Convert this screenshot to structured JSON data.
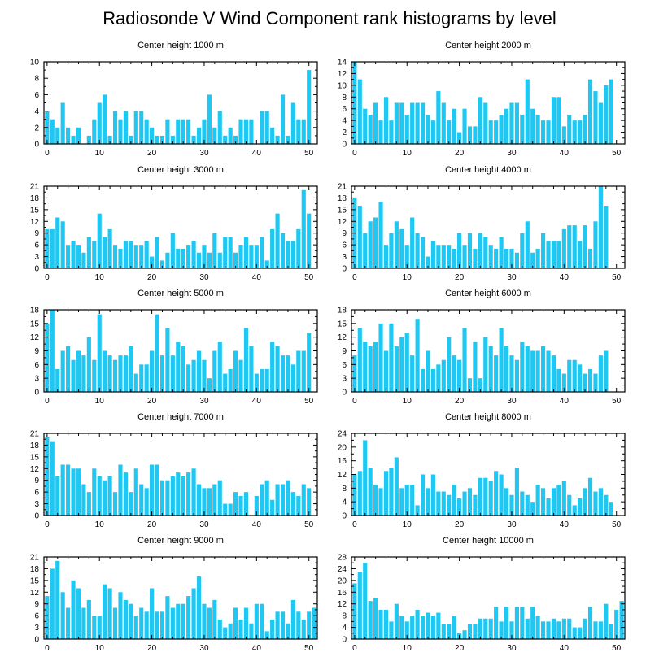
{
  "title": "Radiosonde V Wind Component rank histograms by level",
  "bar_color": "#1ec8f2",
  "chart_data": [
    {
      "type": "bar",
      "title": "Center height 1000 m",
      "x": [
        0,
        1,
        2,
        3,
        4,
        5,
        6,
        7,
        8,
        9,
        10,
        11,
        12,
        13,
        14,
        15,
        16,
        17,
        18,
        19,
        20,
        21,
        22,
        23,
        24,
        25,
        26,
        27,
        28,
        29,
        30,
        31,
        32,
        33,
        34,
        35,
        36,
        37,
        38,
        39,
        40,
        41,
        42,
        43,
        44,
        45,
        46,
        47,
        48,
        49,
        50,
        51
      ],
      "values": [
        4,
        3,
        2,
        5,
        2,
        1,
        2,
        0,
        1,
        3,
        5,
        6,
        1,
        4,
        3,
        4,
        1,
        4,
        4,
        3,
        2,
        1,
        1,
        3,
        1,
        3,
        3,
        3,
        1,
        2,
        3,
        6,
        2,
        4,
        1,
        2,
        1,
        3,
        3,
        3,
        0,
        4,
        4,
        2,
        1,
        6,
        1,
        5,
        3,
        3,
        9,
        0
      ],
      "ylim": [
        0,
        10
      ],
      "yticks": [
        0,
        2,
        4,
        6,
        8,
        10
      ],
      "xticks": [
        0,
        10,
        20,
        30,
        40,
        50
      ]
    },
    {
      "type": "bar",
      "title": "Center height 2000 m",
      "x": [
        0,
        1,
        2,
        3,
        4,
        5,
        6,
        7,
        8,
        9,
        10,
        11,
        12,
        13,
        14,
        15,
        16,
        17,
        18,
        19,
        20,
        21,
        22,
        23,
        24,
        25,
        26,
        27,
        28,
        29,
        30,
        31,
        32,
        33,
        34,
        35,
        36,
        37,
        38,
        39,
        40,
        41,
        42,
        43,
        44,
        45,
        46,
        47,
        48,
        49,
        50,
        51
      ],
      "values": [
        14,
        11,
        6,
        5,
        7,
        4,
        8,
        4,
        7,
        7,
        5,
        7,
        7,
        7,
        5,
        4,
        9,
        7,
        4,
        6,
        2,
        6,
        3,
        3,
        8,
        7,
        4,
        4,
        5,
        6,
        7,
        7,
        5,
        11,
        6,
        5,
        4,
        4,
        8,
        8,
        3,
        5,
        4,
        4,
        5,
        11,
        9,
        7,
        10,
        11,
        0,
        0
      ],
      "ylim": [
        0,
        14
      ],
      "yticks": [
        0,
        2,
        4,
        6,
        8,
        10,
        12,
        14
      ],
      "xticks": [
        0,
        10,
        20,
        30,
        40,
        50
      ]
    },
    {
      "type": "bar",
      "title": "Center height 3000 m",
      "x": [
        0,
        1,
        2,
        3,
        4,
        5,
        6,
        7,
        8,
        9,
        10,
        11,
        12,
        13,
        14,
        15,
        16,
        17,
        18,
        19,
        20,
        21,
        22,
        23,
        24,
        25,
        26,
        27,
        28,
        29,
        30,
        31,
        32,
        33,
        34,
        35,
        36,
        37,
        38,
        39,
        40,
        41,
        42,
        43,
        44,
        45,
        46,
        47,
        48,
        49,
        50,
        51
      ],
      "values": [
        10,
        10,
        13,
        12,
        6,
        7,
        6,
        4,
        8,
        7,
        14,
        8,
        10,
        6,
        5,
        7,
        7,
        6,
        6,
        7,
        3,
        8,
        2,
        4,
        9,
        5,
        5,
        6,
        7,
        4,
        6,
        4,
        9,
        4,
        8,
        8,
        4,
        6,
        8,
        6,
        6,
        8,
        2,
        10,
        14,
        9,
        7,
        7,
        10,
        20,
        14,
        0
      ],
      "ylim": [
        0,
        21
      ],
      "yticks": [
        0,
        3,
        6,
        9,
        12,
        15,
        18,
        21
      ],
      "xticks": [
        0,
        10,
        20,
        30,
        40,
        50
      ]
    },
    {
      "type": "bar",
      "title": "Center height 4000 m",
      "x": [
        0,
        1,
        2,
        3,
        4,
        5,
        6,
        7,
        8,
        9,
        10,
        11,
        12,
        13,
        14,
        15,
        16,
        17,
        18,
        19,
        20,
        21,
        22,
        23,
        24,
        25,
        26,
        27,
        28,
        29,
        30,
        31,
        32,
        33,
        34,
        35,
        36,
        37,
        38,
        39,
        40,
        41,
        42,
        43,
        44,
        45,
        46,
        47,
        48,
        49,
        50,
        51
      ],
      "values": [
        18,
        16,
        9,
        12,
        13,
        17,
        6,
        9,
        12,
        10,
        6,
        13,
        9,
        8,
        3,
        7,
        6,
        6,
        6,
        5,
        9,
        6,
        9,
        5,
        9,
        8,
        6,
        5,
        8,
        5,
        5,
        4,
        9,
        12,
        4,
        5,
        9,
        7,
        7,
        7,
        10,
        11,
        11,
        7,
        11,
        5,
        12,
        21,
        16,
        0,
        0,
        0
      ],
      "ylim": [
        0,
        21
      ],
      "yticks": [
        0,
        3,
        6,
        9,
        12,
        15,
        18,
        21
      ],
      "xticks": [
        0,
        10,
        20,
        30,
        40,
        50
      ]
    },
    {
      "type": "bar",
      "title": "Center height 5000 m",
      "x": [
        0,
        1,
        2,
        3,
        4,
        5,
        6,
        7,
        8,
        9,
        10,
        11,
        12,
        13,
        14,
        15,
        16,
        17,
        18,
        19,
        20,
        21,
        22,
        23,
        24,
        25,
        26,
        27,
        28,
        29,
        30,
        31,
        32,
        33,
        34,
        35,
        36,
        37,
        38,
        39,
        40,
        41,
        42,
        43,
        44,
        45,
        46,
        47,
        48,
        49,
        50,
        51
      ],
      "values": [
        15,
        18,
        5,
        9,
        10,
        7,
        9,
        8,
        12,
        7,
        17,
        9,
        8,
        7,
        8,
        8,
        10,
        4,
        6,
        6,
        9,
        17,
        8,
        14,
        8,
        11,
        10,
        6,
        7,
        9,
        7,
        3,
        9,
        11,
        4,
        5,
        9,
        7,
        14,
        10,
        4,
        5,
        5,
        11,
        10,
        8,
        8,
        6,
        9,
        9,
        13,
        0
      ],
      "ylim": [
        0,
        18
      ],
      "yticks": [
        0,
        3,
        6,
        9,
        12,
        15,
        18
      ],
      "xticks": [
        0,
        10,
        20,
        30,
        40,
        50
      ]
    },
    {
      "type": "bar",
      "title": "Center height 6000 m",
      "x": [
        0,
        1,
        2,
        3,
        4,
        5,
        6,
        7,
        8,
        9,
        10,
        11,
        12,
        13,
        14,
        15,
        16,
        17,
        18,
        19,
        20,
        21,
        22,
        23,
        24,
        25,
        26,
        27,
        28,
        29,
        30,
        31,
        32,
        33,
        34,
        35,
        36,
        37,
        38,
        39,
        40,
        41,
        42,
        43,
        44,
        45,
        46,
        47,
        48,
        49,
        50,
        51
      ],
      "values": [
        8,
        14,
        11,
        10,
        11,
        15,
        9,
        15,
        10,
        12,
        13,
        8,
        16,
        5,
        9,
        5,
        6,
        7,
        12,
        8,
        7,
        14,
        3,
        11,
        3,
        12,
        10,
        8,
        14,
        10,
        8,
        7,
        11,
        10,
        9,
        9,
        10,
        9,
        8,
        5,
        4,
        7,
        7,
        6,
        4,
        5,
        4,
        8,
        9,
        0,
        0,
        0
      ],
      "ylim": [
        0,
        18
      ],
      "yticks": [
        0,
        3,
        6,
        9,
        12,
        15,
        18
      ],
      "xticks": [
        0,
        10,
        20,
        30,
        40,
        50
      ]
    },
    {
      "type": "bar",
      "title": "Center height 7000 m",
      "x": [
        0,
        1,
        2,
        3,
        4,
        5,
        6,
        7,
        8,
        9,
        10,
        11,
        12,
        13,
        14,
        15,
        16,
        17,
        18,
        19,
        20,
        21,
        22,
        23,
        24,
        25,
        26,
        27,
        28,
        29,
        30,
        31,
        32,
        33,
        34,
        35,
        36,
        37,
        38,
        39,
        40,
        41,
        42,
        43,
        44,
        45,
        46,
        47,
        48,
        49,
        50,
        51
      ],
      "values": [
        20,
        19,
        10,
        13,
        13,
        12,
        12,
        8,
        6,
        12,
        10,
        9,
        10,
        6,
        13,
        11,
        6,
        12,
        8,
        7,
        13,
        13,
        9,
        9,
        10,
        11,
        10,
        11,
        12,
        8,
        7,
        7,
        8,
        9,
        3,
        3,
        6,
        5,
        6,
        0,
        5,
        8,
        9,
        4,
        8,
        8,
        9,
        6,
        5,
        8,
        7,
        0
      ],
      "ylim": [
        0,
        21
      ],
      "yticks": [
        0,
        3,
        6,
        9,
        12,
        15,
        18,
        21
      ],
      "xticks": [
        0,
        10,
        20,
        30,
        40,
        50
      ]
    },
    {
      "type": "bar",
      "title": "Center height 8000 m",
      "x": [
        0,
        1,
        2,
        3,
        4,
        5,
        6,
        7,
        8,
        9,
        10,
        11,
        12,
        13,
        14,
        15,
        16,
        17,
        18,
        19,
        20,
        21,
        22,
        23,
        24,
        25,
        26,
        27,
        28,
        29,
        30,
        31,
        32,
        33,
        34,
        35,
        36,
        37,
        38,
        39,
        40,
        41,
        42,
        43,
        44,
        45,
        46,
        47,
        48,
        49,
        50,
        51
      ],
      "values": [
        12,
        13,
        22,
        14,
        9,
        8,
        13,
        14,
        17,
        8,
        9,
        9,
        3,
        12,
        8,
        12,
        7,
        7,
        6,
        9,
        5,
        7,
        8,
        6,
        11,
        11,
        10,
        13,
        12,
        8,
        6,
        14,
        7,
        6,
        4,
        9,
        8,
        5,
        8,
        9,
        10,
        6,
        3,
        5,
        8,
        11,
        7,
        8,
        6,
        4,
        0,
        0
      ],
      "ylim": [
        0,
        24
      ],
      "yticks": [
        0,
        4,
        8,
        12,
        16,
        20,
        24
      ],
      "xticks": [
        0,
        10,
        20,
        30,
        40,
        50
      ]
    },
    {
      "type": "bar",
      "title": "Center height 9000 m",
      "x": [
        0,
        1,
        2,
        3,
        4,
        5,
        6,
        7,
        8,
        9,
        10,
        11,
        12,
        13,
        14,
        15,
        16,
        17,
        18,
        19,
        20,
        21,
        22,
        23,
        24,
        25,
        26,
        27,
        28,
        29,
        30,
        31,
        32,
        33,
        34,
        35,
        36,
        37,
        38,
        39,
        40,
        41,
        42,
        43,
        44,
        45,
        46,
        47,
        48,
        49,
        50,
        51
      ],
      "values": [
        11,
        18,
        20,
        12,
        8,
        15,
        13,
        8,
        10,
        6,
        6,
        14,
        13,
        8,
        12,
        10,
        9,
        6,
        8,
        7,
        13,
        7,
        7,
        11,
        8,
        9,
        9,
        11,
        13,
        16,
        9,
        8,
        10,
        5,
        3,
        4,
        8,
        5,
        8,
        4,
        9,
        9,
        2,
        5,
        7,
        7,
        4,
        10,
        7,
        5,
        7,
        8
      ],
      "ylim": [
        0,
        21
      ],
      "yticks": [
        0,
        3,
        6,
        9,
        12,
        15,
        18,
        21
      ],
      "xticks": [
        0,
        10,
        20,
        30,
        40,
        50
      ]
    },
    {
      "type": "bar",
      "title": "Center height 10000 m",
      "x": [
        0,
        1,
        2,
        3,
        4,
        5,
        6,
        7,
        8,
        9,
        10,
        11,
        12,
        13,
        14,
        15,
        16,
        17,
        18,
        19,
        20,
        21,
        22,
        23,
        24,
        25,
        26,
        27,
        28,
        29,
        30,
        31,
        32,
        33,
        34,
        35,
        36,
        37,
        38,
        39,
        40,
        41,
        42,
        43,
        44,
        45,
        46,
        47,
        48,
        49,
        50,
        51
      ],
      "values": [
        19,
        23,
        26,
        13,
        14,
        10,
        10,
        6,
        12,
        8,
        6,
        8,
        10,
        8,
        9,
        8,
        9,
        5,
        5,
        8,
        2,
        3,
        5,
        5,
        7,
        7,
        7,
        11,
        6,
        11,
        6,
        11,
        11,
        7,
        11,
        8,
        6,
        6,
        7,
        6,
        7,
        7,
        4,
        4,
        7,
        11,
        6,
        6,
        12,
        5,
        10,
        13
      ],
      "ylim": [
        0,
        28
      ],
      "yticks": [
        0,
        4,
        8,
        12,
        16,
        20,
        24,
        28
      ],
      "xticks": [
        0,
        10,
        20,
        30,
        40,
        50
      ]
    }
  ]
}
